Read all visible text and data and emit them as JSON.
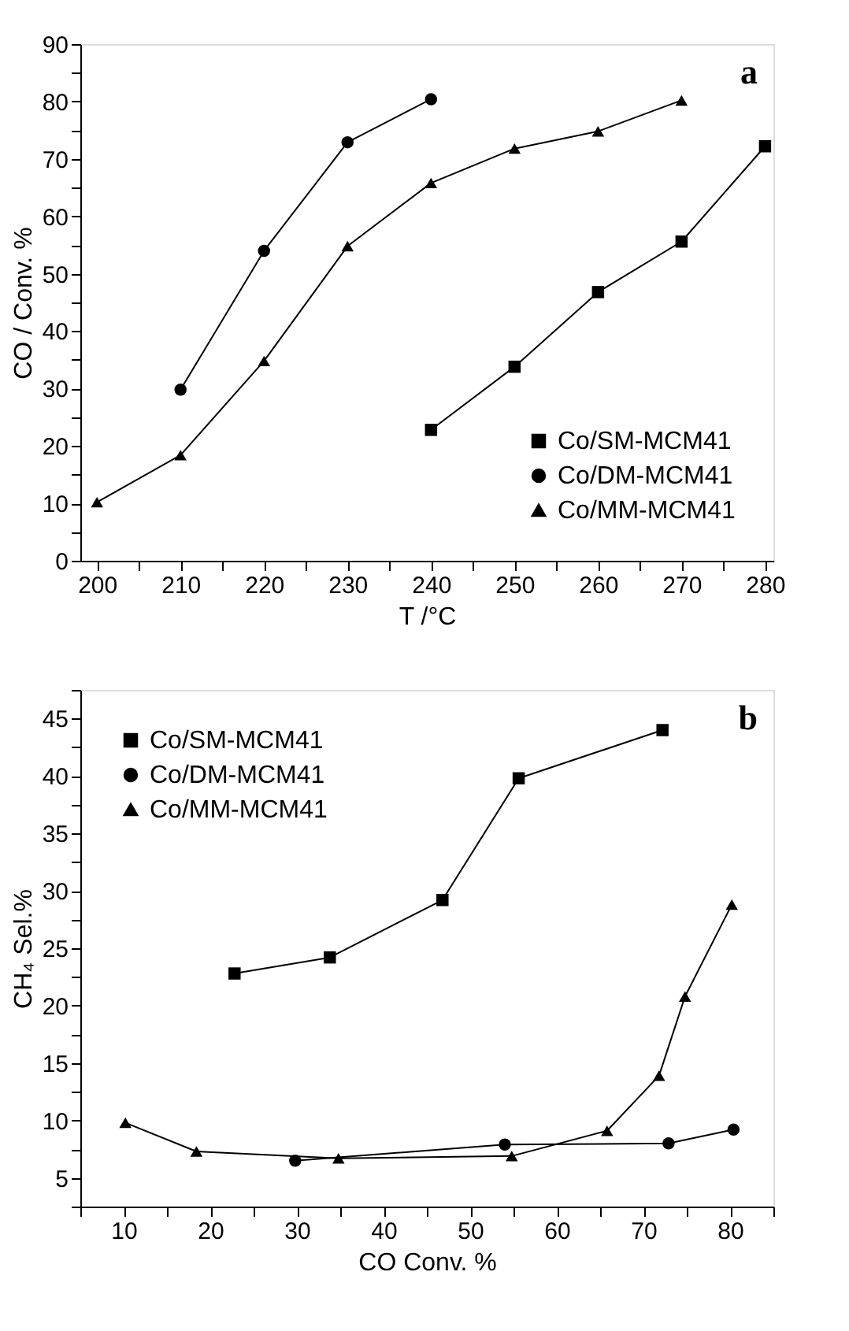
{
  "chart_data": [
    {
      "type": "line",
      "xlabel": "T /°C",
      "ylabel": "CO / Conv. %",
      "annotations": [
        "a"
      ],
      "xlim": [
        198,
        281
      ],
      "ylim": [
        0,
        90
      ],
      "xticks": [
        200,
        {
          "value": 205,
          "label": null
        },
        210,
        {
          "value": 215,
          "label": null
        },
        220,
        {
          "value": 225,
          "label": null
        },
        230,
        {
          "value": 235,
          "label": null
        },
        240,
        {
          "value": 245,
          "label": null
        },
        250,
        {
          "value": 255,
          "label": null
        },
        260,
        {
          "value": 265,
          "label": null
        },
        270,
        {
          "value": 275,
          "label": null
        },
        280
      ],
      "yticks": [
        0,
        {
          "value": 5,
          "label": null
        },
        10,
        {
          "value": 15,
          "label": null
        },
        20,
        {
          "value": 25,
          "label": null
        },
        30,
        {
          "value": 35,
          "label": null
        },
        40,
        {
          "value": 45,
          "label": null
        },
        50,
        {
          "value": 55,
          "label": null
        },
        60,
        {
          "value": 65,
          "label": null
        },
        70,
        {
          "value": 75,
          "label": null
        },
        80,
        {
          "value": 85,
          "label": null
        },
        90
      ],
      "grid": false,
      "legend": "bottom right",
      "line_style": "solid",
      "series": [
        {
          "name": "Co/SM-MCM41",
          "color": "#000000",
          "marker": "square",
          "x": [
            240,
            250,
            260,
            270,
            280
          ],
          "values": [
            22.8,
            33.8,
            46.8,
            55.6,
            72.2
          ]
        },
        {
          "name": "Co/DM-MCM41",
          "color": "#000000",
          "marker": "circle",
          "x": [
            210,
            220,
            230,
            240
          ],
          "values": [
            29.8,
            54.0,
            72.9,
            80.4
          ]
        },
        {
          "name": "Co/MM-MCM41",
          "color": "#000000",
          "marker": "triangle",
          "x": [
            200,
            210,
            220,
            230,
            240,
            250,
            260,
            270
          ],
          "values": [
            10.2,
            18.4,
            34.8,
            54.8,
            65.8,
            71.8,
            74.8,
            80.2
          ]
        }
      ]
    },
    {
      "type": "line",
      "xlabel": "CO Conv. %",
      "ylabel": "CH₄ Sel.%",
      "annotations": [
        "b"
      ],
      "xlim": [
        5,
        85
      ],
      "ylim": [
        2.5,
        47.5
      ],
      "xticks": [
        {
          "value": 5,
          "label": null
        },
        10,
        {
          "value": 15,
          "label": null
        },
        20,
        {
          "value": 25,
          "label": null
        },
        30,
        {
          "value": 35,
          "label": null
        },
        40,
        {
          "value": 45,
          "label": null
        },
        50,
        {
          "value": 55,
          "label": null
        },
        60,
        {
          "value": 65,
          "label": null
        },
        70,
        {
          "value": 75,
          "label": null
        },
        80,
        {
          "value": 85,
          "label": null
        }
      ],
      "yticks": [
        {
          "value": 2.5,
          "label": null
        },
        5,
        {
          "value": 7.5,
          "label": null
        },
        10,
        {
          "value": 12.5,
          "label": null
        },
        15,
        {
          "value": 17.5,
          "label": null
        },
        20,
        {
          "value": 22.5,
          "label": null
        },
        25,
        {
          "value": 27.5,
          "label": null
        },
        30,
        {
          "value": 32.5,
          "label": null
        },
        35,
        {
          "value": 37.5,
          "label": null
        },
        40,
        {
          "value": 42.5,
          "label": null
        },
        45,
        {
          "value": 47.5,
          "label": null
        }
      ],
      "grid": false,
      "legend": "top left",
      "line_style": "solid",
      "series": [
        {
          "name": "Co/SM-MCM41",
          "color": "#000000",
          "marker": "square",
          "x": [
            22.8,
            33.8,
            46.8,
            55.6,
            72.2
          ],
          "values": [
            22.8,
            24.2,
            29.2,
            39.8,
            44.0
          ]
        },
        {
          "name": "Co/DM-MCM41",
          "color": "#000000",
          "marker": "circle",
          "x": [
            29.8,
            54.0,
            72.9,
            80.4
          ],
          "values": [
            6.5,
            7.9,
            8.0,
            9.2
          ]
        },
        {
          "name": "Co/MM-MCM41",
          "color": "#000000",
          "marker": "triangle",
          "x": [
            10.2,
            18.4,
            34.8,
            54.8,
            65.8,
            71.8,
            74.8,
            80.2
          ],
          "values": [
            9.8,
            7.3,
            6.7,
            6.9,
            9.1,
            13.9,
            20.8,
            28.8
          ]
        }
      ]
    }
  ]
}
